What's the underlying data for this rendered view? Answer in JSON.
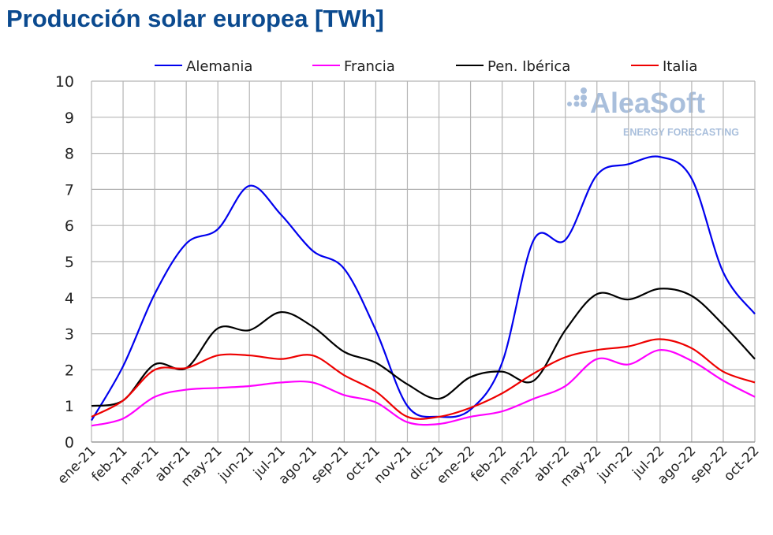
{
  "chart_data": {
    "type": "line",
    "title": "Producción solar europea [TWh]",
    "xlabel": "",
    "ylabel": "",
    "ylim": [
      0,
      10
    ],
    "yticks": [
      0,
      1,
      2,
      3,
      4,
      5,
      6,
      7,
      8,
      9,
      10
    ],
    "grid": true,
    "legend_position": "top",
    "categories": [
      "ene-21",
      "feb-21",
      "mar-21",
      "abr-21",
      "may-21",
      "jun-21",
      "jul-21",
      "ago-21",
      "sep-21",
      "oct-21",
      "nov-21",
      "dic-21",
      "ene-22",
      "feb-22",
      "mar-22",
      "abr-22",
      "may-22",
      "jun-22",
      "jul-22",
      "ago-22",
      "sep-22",
      "oct-22"
    ],
    "series": [
      {
        "name": "Alemania",
        "color": "#0000ee",
        "values": [
          0.6,
          2.1,
          4.1,
          5.5,
          5.9,
          7.1,
          6.3,
          5.3,
          4.8,
          3.1,
          1.0,
          0.7,
          0.9,
          2.2,
          5.6,
          5.6,
          7.4,
          7.7,
          7.9,
          7.3,
          4.7,
          3.55
        ]
      },
      {
        "name": "Francia",
        "color": "#ff00ff",
        "values": [
          0.45,
          0.65,
          1.25,
          1.45,
          1.5,
          1.55,
          1.65,
          1.65,
          1.3,
          1.1,
          0.55,
          0.5,
          0.7,
          0.85,
          1.2,
          1.55,
          2.3,
          2.15,
          2.55,
          2.25,
          1.7,
          1.25
        ]
      },
      {
        "name": "Pen. Ibérica",
        "color": "#000000",
        "values": [
          1.0,
          1.15,
          2.15,
          2.05,
          3.15,
          3.1,
          3.6,
          3.2,
          2.5,
          2.2,
          1.6,
          1.2,
          1.8,
          1.95,
          1.7,
          3.1,
          4.1,
          3.95,
          4.25,
          4.05,
          3.25,
          2.3
        ]
      },
      {
        "name": "Italia",
        "color": "#ee0000",
        "values": [
          0.7,
          1.15,
          2.0,
          2.05,
          2.4,
          2.4,
          2.3,
          2.4,
          1.85,
          1.4,
          0.7,
          0.7,
          0.95,
          1.35,
          1.9,
          2.35,
          2.55,
          2.65,
          2.85,
          2.6,
          1.95,
          1.65
        ]
      }
    ]
  },
  "watermark": {
    "brand": "AleaSoft",
    "tagline": "ENERGY FORECASTING",
    "color": "#a9bfdc"
  }
}
